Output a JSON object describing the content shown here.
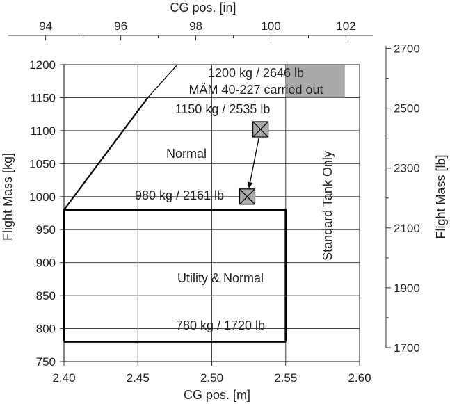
{
  "chart_data": {
    "type": "envelope",
    "xlabel": "CG pos. [m]",
    "x2label": "CG pos. [in]",
    "ylabel": "Flight Mass [kg]",
    "y2label": "Flight Mass [lb]",
    "xlim": [
      2.4,
      2.6
    ],
    "ylim": [
      750,
      1200
    ],
    "x_ticks": [
      "2.40",
      "2.45",
      "2.50",
      "2.55",
      "2.60"
    ],
    "y_ticks": [
      "750",
      "800",
      "850",
      "900",
      "950",
      "1000",
      "1050",
      "1100",
      "1150",
      "1200"
    ],
    "x2_ticks": [
      "94",
      "96",
      "98",
      "100",
      "102"
    ],
    "y2_ticks": [
      "1700",
      "1900",
      "2100",
      "2300",
      "2500",
      "2700"
    ],
    "grid": true,
    "normal_envelope": [
      [
        2.4,
        980
      ],
      [
        2.4567,
        1150
      ],
      [
        2.4767,
        1200
      ]
    ],
    "utility_envelope": [
      [
        2.4,
        780
      ],
      [
        2.4,
        980
      ],
      [
        2.55,
        980
      ],
      [
        2.55,
        780
      ]
    ],
    "shaded_region": {
      "x": [
        2.55,
        2.59
      ],
      "y": [
        1150,
        1200
      ]
    },
    "markers": [
      {
        "x": 2.533,
        "y": 1102
      },
      {
        "x": 2.524,
        "y": 1000
      }
    ],
    "labels": {
      "mtow_extended": "1200 kg / 2646 lb",
      "mtow_extended_sub": "MÄM 40-227 carried out",
      "mtow_normal": "1150 kg / 2535 lb",
      "normal": "Normal",
      "utility_limit": "980 kg / 2161 lb",
      "utility_normal": "Utility & Normal",
      "min_mass": "780 kg / 1720 lb",
      "standard_tank": "Standard Tank Only"
    }
  }
}
